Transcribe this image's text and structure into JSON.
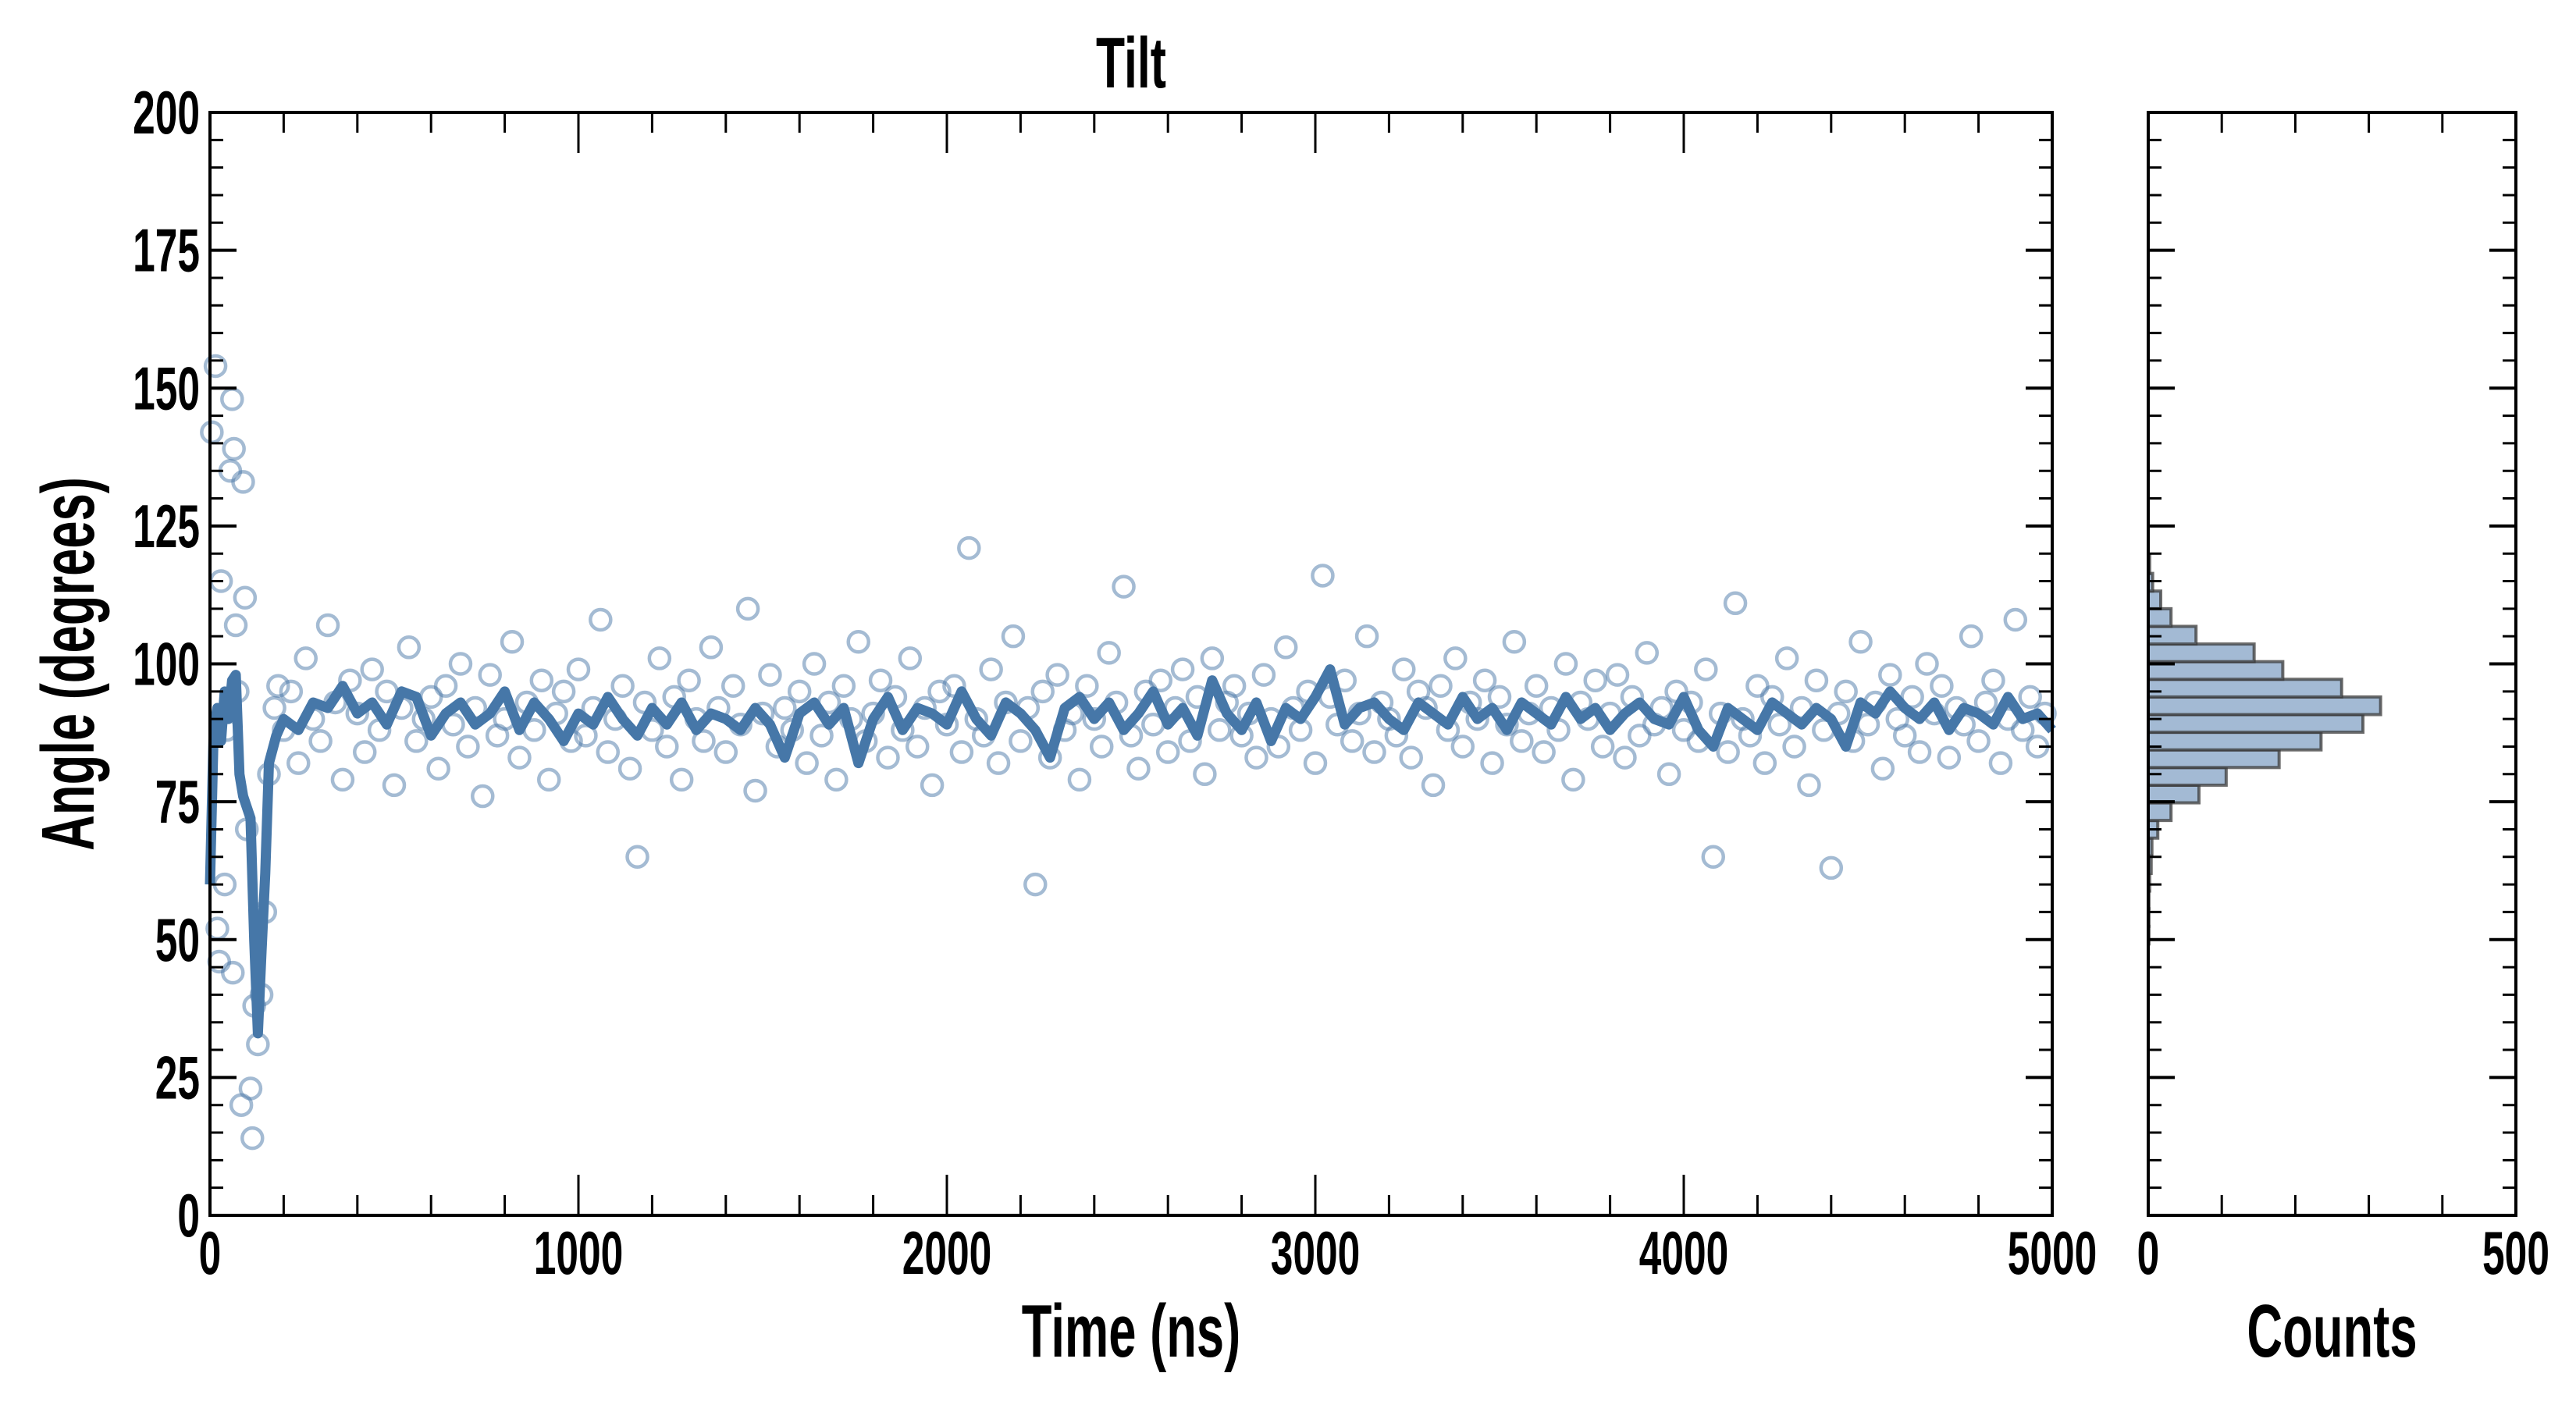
{
  "chart_data": [
    {
      "type": "scatter",
      "title": "Tilt",
      "xlabel": "Time (ns)",
      "ylabel": "Angle (degrees)",
      "xlim": [
        0,
        5000
      ],
      "ylim": [
        0,
        200
      ],
      "x_ticks": [
        "0",
        "1000",
        "2000",
        "3000",
        "4000",
        "5000"
      ],
      "y_ticks": [
        "0",
        "25",
        "50",
        "75",
        "100",
        "125",
        "150",
        "175",
        "200"
      ],
      "grid": false,
      "colors": {
        "scatter": "#4a78a8",
        "line": "#4677a8"
      },
      "series": [
        {
          "name": "raw",
          "kind": "scatter",
          "points_early": [
            [
              5,
              142
            ],
            [
              15,
              154
            ],
            [
              20,
              52
            ],
            [
              25,
              46
            ],
            [
              30,
              115
            ],
            [
              40,
              60
            ],
            [
              45,
              88
            ],
            [
              55,
              135
            ],
            [
              60,
              148
            ],
            [
              62,
              44
            ],
            [
              65,
              139
            ],
            [
              70,
              107
            ],
            [
              75,
              95
            ],
            [
              85,
              20
            ],
            [
              90,
              133
            ],
            [
              95,
              112
            ],
            [
              100,
              70
            ],
            [
              110,
              23
            ],
            [
              115,
              14
            ],
            [
              120,
              38
            ],
            [
              130,
              31
            ],
            [
              140,
              40
            ],
            [
              150,
              55
            ],
            [
              160,
              80
            ],
            [
              175,
              92
            ],
            [
              185,
              96
            ]
          ],
          "x_start": 200,
          "x_step": 20,
          "values": [
            88,
            95,
            82,
            101,
            90,
            86,
            107,
            93,
            79,
            97,
            91,
            84,
            99,
            88,
            95,
            78,
            92,
            103,
            86,
            90,
            94,
            81,
            96,
            89,
            100,
            85,
            92,
            76,
            98,
            87,
            90,
            104,
            83,
            93,
            88,
            97,
            79,
            91,
            95,
            86,
            99,
            87,
            92,
            108,
            84,
            90,
            96,
            81,
            65,
            93,
            88,
            101,
            85,
            94,
            79,
            97,
            90,
            86,
            103,
            92,
            84,
            96,
            89,
            110,
            77,
            91,
            98,
            85,
            92,
            88,
            95,
            82,
            100,
            87,
            93,
            79,
            96,
            90,
            104,
            86,
            91,
            97,
            83,
            94,
            88,
            101,
            85,
            92,
            78,
            95,
            89,
            96,
            84,
            121,
            90,
            87,
            99,
            82,
            93,
            105,
            86,
            92,
            60,
            95,
            83,
            98,
            88,
            91,
            79,
            96,
            90,
            85,
            102,
            93,
            114,
            87,
            81,
            95,
            89,
            97,
            84,
            92,
            99,
            86,
            94,
            80,
            101,
            88,
            93,
            96,
            87,
            91,
            83,
            98,
            90,
            85,
            103,
            92,
            88,
            95,
            82,
            116,
            94,
            89,
            97,
            86,
            91,
            105,
            84,
            93,
            90,
            87,
            99,
            83,
            95,
            92,
            78,
            96,
            88,
            101,
            85,
            93,
            90,
            97,
            82,
            94,
            89,
            104,
            86,
            91,
            96,
            84,
            92,
            88,
            100,
            79,
            93,
            90,
            97,
            85,
            91,
            98,
            83,
            94,
            87,
            102,
            89,
            92,
            80,
            95,
            88,
            93,
            86,
            99,
            65,
            91,
            84,
            111,
            90,
            87,
            96,
            82,
            94,
            89,
            101,
            85,
            92,
            78,
            97,
            88,
            63,
            91,
            95,
            86,
            104,
            89,
            93,
            81,
            98,
            90,
            87,
            94,
            84,
            100,
            91,
            96,
            83,
            92,
            89,
            105,
            86,
            93,
            97,
            82,
            90,
            108,
            88,
            94,
            85,
            91
          ]
        },
        {
          "name": "running average",
          "kind": "line",
          "x": [
            0,
            10,
            20,
            30,
            40,
            50,
            60,
            70,
            80,
            90,
            100,
            110,
            120,
            130,
            140,
            150,
            160,
            180,
            200,
            240,
            280,
            320,
            360,
            400,
            440,
            480,
            520,
            560,
            600,
            640,
            680,
            720,
            760,
            800,
            840,
            880,
            920,
            960,
            1000,
            1040,
            1080,
            1120,
            1160,
            1200,
            1240,
            1280,
            1320,
            1360,
            1400,
            1440,
            1480,
            1520,
            1560,
            1600,
            1640,
            1680,
            1720,
            1760,
            1800,
            1840,
            1880,
            1920,
            1960,
            2000,
            2040,
            2080,
            2120,
            2160,
            2200,
            2240,
            2280,
            2320,
            2360,
            2400,
            2440,
            2480,
            2520,
            2560,
            2600,
            2640,
            2680,
            2720,
            2760,
            2800,
            2840,
            2880,
            2920,
            2960,
            3000,
            3040,
            3080,
            3120,
            3160,
            3200,
            3240,
            3280,
            3320,
            3360,
            3400,
            3440,
            3480,
            3520,
            3560,
            3600,
            3640,
            3680,
            3720,
            3760,
            3800,
            3840,
            3880,
            3920,
            3960,
            4000,
            4040,
            4080,
            4120,
            4160,
            4200,
            4240,
            4280,
            4320,
            4360,
            4400,
            4440,
            4480,
            4520,
            4560,
            4600,
            4640,
            4680,
            4720,
            4760,
            4800,
            4840,
            4880,
            4920,
            4960,
            5000
          ],
          "y": [
            60,
            88,
            92,
            86,
            95,
            90,
            97,
            98,
            80,
            76,
            74,
            72,
            50,
            33,
            48,
            62,
            82,
            87,
            90,
            88,
            93,
            92,
            96,
            91,
            93,
            89,
            95,
            94,
            87,
            91,
            93,
            89,
            91,
            95,
            88,
            93,
            90,
            86,
            91,
            89,
            94,
            90,
            87,
            92,
            89,
            93,
            88,
            91,
            90,
            88,
            92,
            89,
            83,
            91,
            93,
            89,
            92,
            82,
            90,
            94,
            88,
            92,
            91,
            89,
            95,
            90,
            87,
            93,
            91,
            88,
            83,
            92,
            94,
            90,
            93,
            88,
            91,
            95,
            89,
            92,
            87,
            97,
            91,
            88,
            93,
            86,
            92,
            90,
            94,
            99,
            89,
            92,
            93,
            90,
            88,
            93,
            91,
            89,
            94,
            90,
            92,
            88,
            93,
            91,
            89,
            94,
            90,
            92,
            88,
            91,
            93,
            90,
            89,
            94,
            88,
            85,
            92,
            90,
            88,
            93,
            91,
            89,
            92,
            90,
            85,
            93,
            91,
            95,
            92,
            90,
            93,
            88,
            92,
            91,
            89,
            94,
            90,
            91,
            88
          ]
        }
      ]
    },
    {
      "type": "bar",
      "orientation": "horizontal",
      "xlabel": "Counts",
      "xlim": [
        0,
        500
      ],
      "ylim": [
        0,
        200
      ],
      "x_ticks": [
        "0",
        "500"
      ],
      "colors": {
        "fill": "#a3bad4",
        "edge": "#3a3a3a"
      },
      "bin_width": 3.2,
      "bin_lower_edges": [
        49.2,
        52.4,
        55.6,
        58.8,
        62.0,
        65.2,
        68.4,
        71.6,
        74.8,
        78.0,
        81.2,
        84.4,
        87.6,
        90.8,
        94.0,
        97.2,
        100.4,
        103.6,
        106.8,
        110.0,
        113.2,
        116.4
      ],
      "counts": [
        1,
        1,
        1,
        2,
        4,
        5,
        13,
        31,
        69,
        106,
        178,
        235,
        292,
        316,
        263,
        183,
        144,
        65,
        31,
        17,
        6,
        2
      ]
    }
  ]
}
